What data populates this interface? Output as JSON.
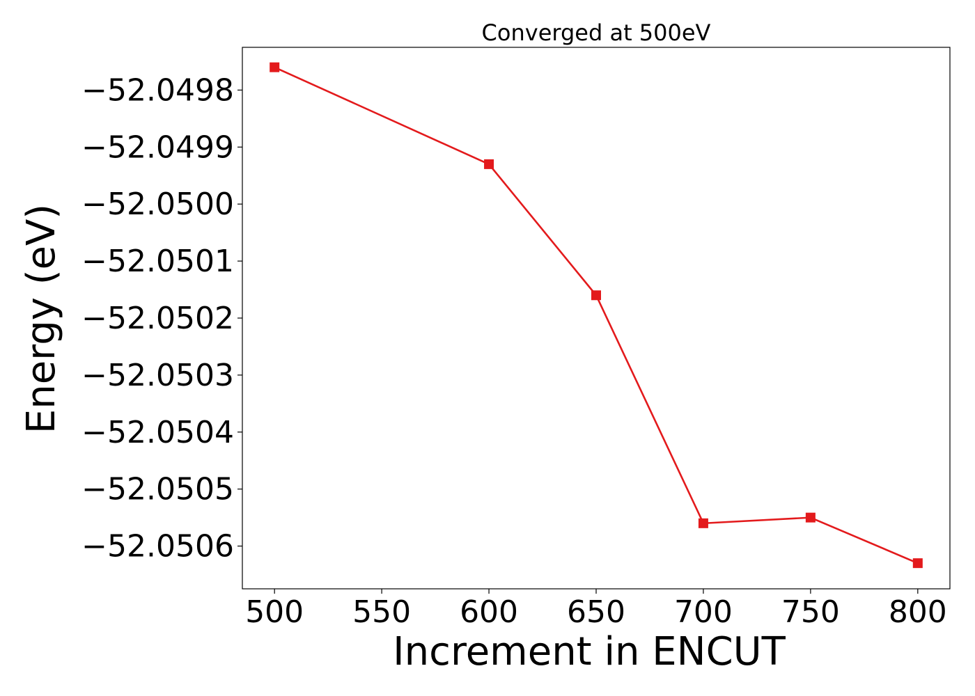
{
  "chart_data": {
    "type": "line",
    "title": "Converged at 500eV",
    "xlabel": "Increment in ENCUT",
    "ylabel": "Energy (eV)",
    "x": [
      500,
      600,
      650,
      700,
      750,
      800
    ],
    "series": [
      {
        "values": [
          -52.04976,
          -52.04993,
          -52.05016,
          -52.05056,
          -52.05055,
          -52.05063
        ],
        "color": "#e31a1c",
        "marker": "square"
      }
    ],
    "xticks": [
      500,
      550,
      600,
      650,
      700,
      750,
      800
    ],
    "xtick_labels": [
      "500",
      "550",
      "600",
      "650",
      "700",
      "750",
      "800"
    ],
    "yticks": [
      -52.0498,
      -52.0499,
      -52.05,
      -52.0501,
      -52.0502,
      -52.0503,
      -52.0504,
      -52.0505,
      -52.0506
    ],
    "ytick_labels": [
      "−52.0498",
      "−52.0499",
      "−52.0500",
      "−52.0501",
      "−52.0502",
      "−52.0503",
      "−52.0504",
      "−52.0505",
      "−52.0506"
    ],
    "xlim": [
      485,
      815
    ],
    "ylim": [
      -52.050675,
      -52.049725
    ],
    "grid": false,
    "legend": "none"
  }
}
